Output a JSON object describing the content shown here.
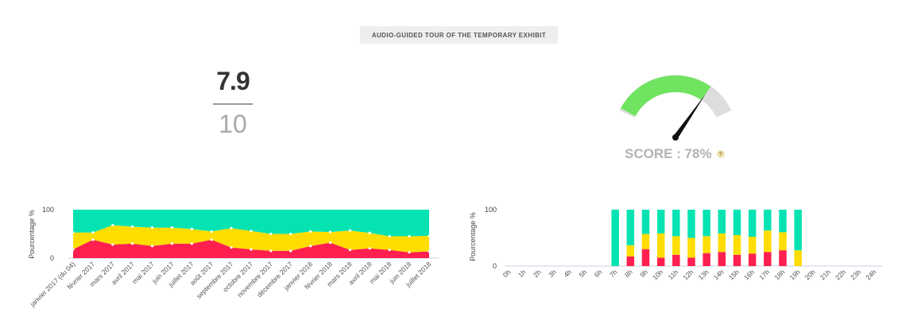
{
  "header": {
    "title": "AUDIO-GUIDED TOUR OF THE TEMPORARY EXHIBIT"
  },
  "rating": {
    "value": "7.9",
    "max": "10"
  },
  "score": {
    "label": "SCORE : 78%",
    "help_icon": "?",
    "percent": 78
  },
  "colors": {
    "green": "#06e3b3",
    "yellow": "#ffdd00",
    "red": "#ff2050",
    "gauge_green": "#70e460",
    "gauge_gray": "#dddddd"
  },
  "chart_data": [
    {
      "type": "area",
      "ylabel": "Pourcentage %",
      "ylim": [
        0,
        100
      ],
      "yticks": [
        "0",
        "100"
      ],
      "categories": [
        "janvier 2017 (du 04)",
        "février 2017",
        "mars 2017",
        "avril 2017",
        "mai 2017",
        "juin 2017",
        "juillet 2017",
        "août 2017",
        "septembre 2017",
        "octobre 2017",
        "novembre 2017",
        "décembre 2017",
        "janvier 2018",
        "février 2018",
        "mars 2018",
        "avril 2018",
        "mai 2018",
        "juin 2018",
        "juillet 2018"
      ],
      "series": [
        {
          "color": "#ff2050",
          "values": [
            18,
            38,
            28,
            30,
            25,
            30,
            30,
            38,
            22,
            18,
            15,
            15,
            25,
            32,
            17,
            20,
            17,
            12,
            14
          ]
        },
        {
          "color": "#ffdd00",
          "values": [
            35,
            15,
            40,
            35,
            38,
            33,
            30,
            17,
            40,
            38,
            35,
            35,
            30,
            22,
            40,
            32,
            28,
            33,
            32
          ]
        },
        {
          "color": "#06e3b3",
          "values": [
            47,
            47,
            32,
            35,
            37,
            37,
            40,
            45,
            38,
            44,
            50,
            50,
            45,
            46,
            43,
            48,
            55,
            55,
            54
          ]
        }
      ]
    },
    {
      "type": "bar",
      "ylabel": "Pourcentage %",
      "ylim": [
        0,
        100
      ],
      "yticks": [
        "0",
        "100"
      ],
      "categories": [
        "0h",
        "1h",
        "2h",
        "3h",
        "4h",
        "5h",
        "6h",
        "7h",
        "8h",
        "9h",
        "10h",
        "11h",
        "12h",
        "13h",
        "14h",
        "15h",
        "16h",
        "17h",
        "18h",
        "19h",
        "20h",
        "21h",
        "22h",
        "23h",
        "24h"
      ],
      "series": [
        {
          "color": "#ff2050",
          "values": [
            0,
            0,
            0,
            0,
            0,
            0,
            0,
            0,
            17,
            30,
            15,
            20,
            15,
            23,
            25,
            20,
            22,
            25,
            28,
            0,
            0,
            0,
            0,
            0,
            0
          ]
        },
        {
          "color": "#ffdd00",
          "values": [
            0,
            0,
            0,
            0,
            0,
            0,
            0,
            0,
            20,
            27,
            43,
            33,
            35,
            30,
            33,
            35,
            30,
            38,
            32,
            28,
            0,
            0,
            0,
            0,
            0
          ]
        },
        {
          "color": "#06e3b3",
          "values": [
            0,
            0,
            0,
            0,
            0,
            0,
            0,
            100,
            63,
            43,
            42,
            47,
            50,
            47,
            42,
            45,
            48,
            37,
            40,
            72,
            0,
            0,
            0,
            0,
            0
          ]
        }
      ]
    }
  ]
}
